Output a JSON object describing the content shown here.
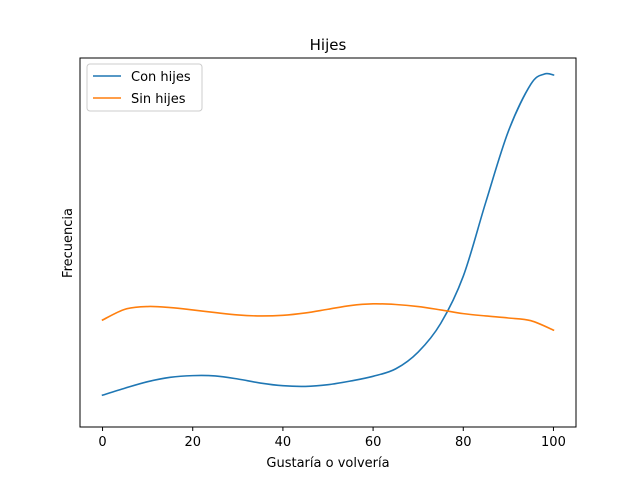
{
  "chart_data": {
    "type": "line",
    "title": "Hijes",
    "xlabel": "Gustaría o volvería",
    "ylabel": "Frecuencia",
    "xlim": [
      -5,
      105
    ],
    "ylim": [
      0,
      1
    ],
    "xticks": [
      0,
      20,
      40,
      60,
      80,
      100
    ],
    "xtick_labels": [
      "0",
      "20",
      "40",
      "60",
      "80",
      "100"
    ],
    "yticks_shown": false,
    "grid": false,
    "legend_position": "upper-left",
    "series": [
      {
        "name": "Con hijes",
        "color": "#1f77b4",
        "x": [
          0,
          5,
          10,
          15,
          20,
          25,
          30,
          35,
          40,
          45,
          50,
          55,
          60,
          65,
          70,
          75,
          80,
          85,
          90,
          95,
          98,
          100
        ],
        "y": [
          0.047,
          0.068,
          0.087,
          0.1,
          0.105,
          0.104,
          0.095,
          0.083,
          0.075,
          0.073,
          0.078,
          0.089,
          0.103,
          0.125,
          0.175,
          0.26,
          0.4,
          0.62,
          0.83,
          0.97,
          1.0,
          0.997
        ]
      },
      {
        "name": "Sin hijes",
        "color": "#ff7f0e",
        "x": [
          0,
          5,
          10,
          15,
          20,
          25,
          30,
          35,
          40,
          45,
          50,
          55,
          60,
          65,
          70,
          75,
          80,
          85,
          90,
          95,
          100
        ],
        "y": [
          0.27,
          0.302,
          0.31,
          0.307,
          0.3,
          0.292,
          0.285,
          0.282,
          0.284,
          0.291,
          0.302,
          0.313,
          0.318,
          0.316,
          0.31,
          0.3,
          0.289,
          0.282,
          0.276,
          0.268,
          0.24
        ]
      }
    ]
  }
}
